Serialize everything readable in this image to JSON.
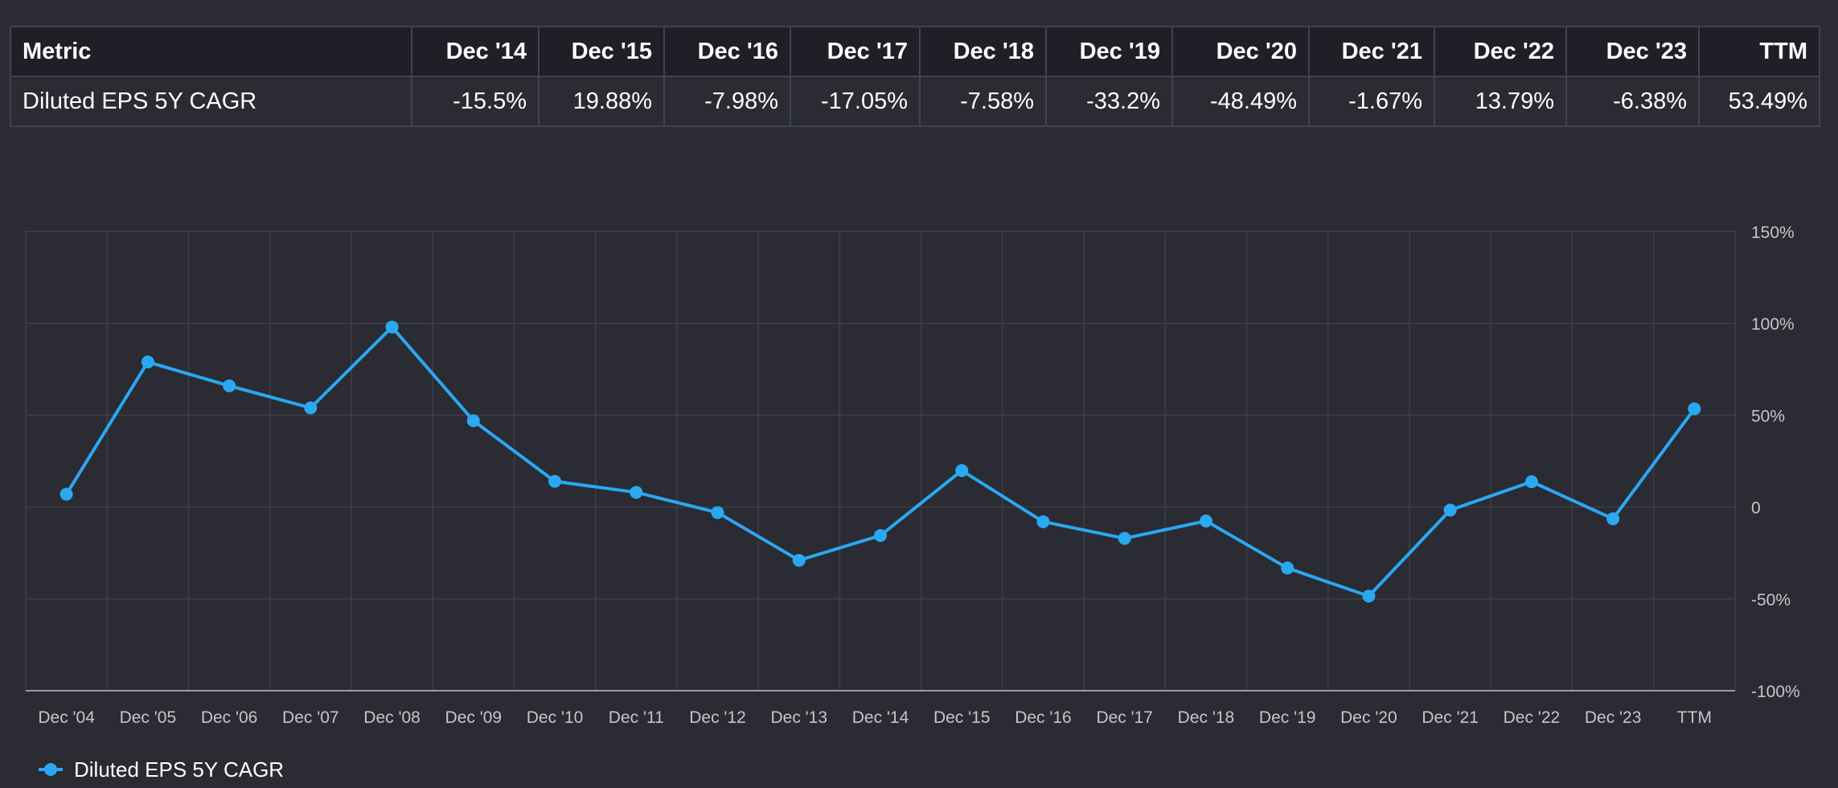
{
  "table": {
    "headers": [
      "Metric",
      "Dec '14",
      "Dec '15",
      "Dec '16",
      "Dec '17",
      "Dec '18",
      "Dec '19",
      "Dec '20",
      "Dec '21",
      "Dec '22",
      "Dec '23",
      "TTM"
    ],
    "rows": [
      {
        "cells": [
          "Diluted EPS 5Y CAGR",
          "-15.5%",
          "19.88%",
          "-7.98%",
          "-17.05%",
          "-7.58%",
          "-33.2%",
          "-48.49%",
          "-1.67%",
          "13.79%",
          "-6.38%",
          "53.49%"
        ]
      }
    ]
  },
  "chart_data": {
    "type": "line",
    "categories": [
      "Dec '04",
      "Dec '05",
      "Dec '06",
      "Dec '07",
      "Dec '08",
      "Dec '09",
      "Dec '10",
      "Dec '11",
      "Dec '12",
      "Dec '13",
      "Dec '14",
      "Dec '15",
      "Dec '16",
      "Dec '17",
      "Dec '18",
      "Dec '19",
      "Dec '20",
      "Dec '21",
      "Dec '22",
      "Dec '23",
      "TTM"
    ],
    "series": [
      {
        "name": "Diluted EPS 5Y CAGR",
        "color": "#2aa8f2",
        "values": [
          7,
          79,
          66,
          54,
          98,
          47,
          14,
          8,
          -3,
          -29,
          -15.5,
          19.88,
          -7.98,
          -17.05,
          -7.58,
          -33.2,
          -48.49,
          -1.67,
          13.79,
          -6.38,
          53.49
        ]
      }
    ],
    "ylim": [
      -100,
      150
    ],
    "yticks": [
      {
        "value": 150,
        "label": "150%"
      },
      {
        "value": 100,
        "label": "100%"
      },
      {
        "value": 50,
        "label": "50%"
      },
      {
        "value": 0,
        "label": "0"
      },
      {
        "value": -50,
        "label": "-50%"
      },
      {
        "value": -100,
        "label": "-100%"
      }
    ],
    "y_axis_side": "right",
    "grid": true,
    "legend_position": "bottom-left"
  },
  "legend": {
    "label": "Diluted EPS 5Y CAGR"
  }
}
